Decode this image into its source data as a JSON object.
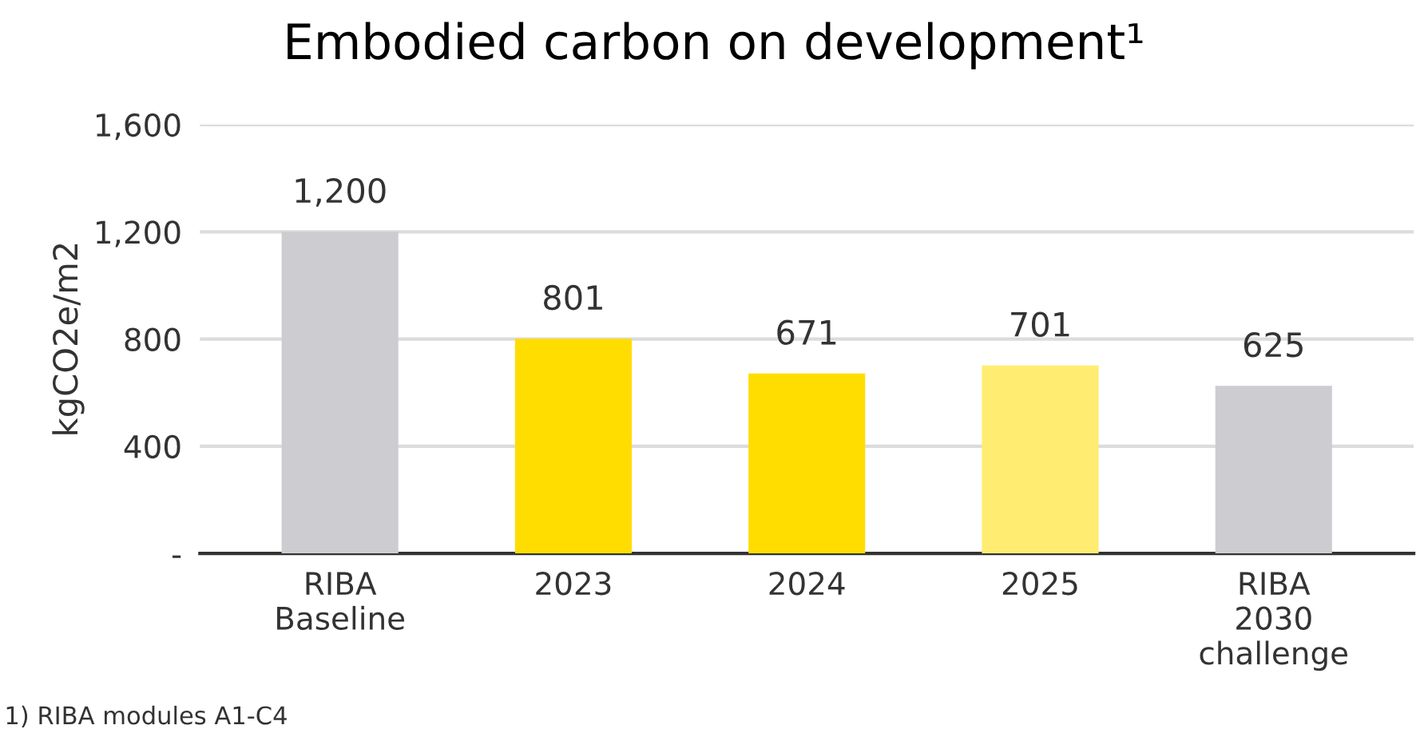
{
  "chart_data": {
    "type": "bar",
    "title": "Embodied carbon on development¹",
    "ylabel": "kgCO2e/m2",
    "categories": [
      "RIBA\nBaseline",
      "2023",
      "2024",
      "2025",
      "RIBA\n2030\nchallenge"
    ],
    "values": [
      1200,
      801,
      671,
      701,
      625
    ],
    "colors": [
      "#cdcdd1",
      "#ffdd00",
      "#ffdd00",
      "#ffec70",
      "#cdcdd1"
    ],
    "value_labels": [
      "1,200",
      "801",
      "671",
      "701",
      "625"
    ],
    "ylim": [
      0,
      1600
    ],
    "yticks": [
      {
        "value": 0,
        "label": "-"
      },
      {
        "value": 400,
        "label": "400"
      },
      {
        "value": 800,
        "label": "800"
      },
      {
        "value": 1200,
        "label": "1,200"
      },
      {
        "value": 1600,
        "label": "1,600"
      }
    ],
    "grid": "y",
    "annotations": [
      "1) RIBA modules A1-C4"
    ]
  }
}
